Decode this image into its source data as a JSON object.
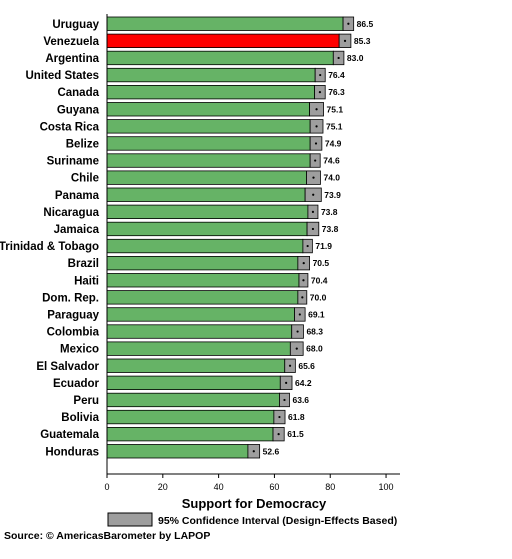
{
  "chart_data": {
    "type": "bar",
    "orientation": "horizontal",
    "categories": [
      "Uruguay",
      "Venezuela",
      "Argentina",
      "United States",
      "Canada",
      "Guyana",
      "Costa Rica",
      "Belize",
      "Suriname",
      "Chile",
      "Panama",
      "Nicaragua",
      "Jamaica",
      "Trinidad & Tobago",
      "Brazil",
      "Haiti",
      "Dom. Rep.",
      "Paraguay",
      "Colombia",
      "Mexico",
      "El Salvador",
      "Ecuador",
      "Peru",
      "Bolivia",
      "Guatemala",
      "Honduras"
    ],
    "values": [
      86.5,
      85.3,
      83.0,
      76.4,
      76.3,
      75.1,
      75.1,
      74.9,
      74.6,
      74.0,
      73.9,
      73.8,
      73.8,
      71.9,
      70.5,
      70.4,
      70.0,
      69.1,
      68.3,
      68.0,
      65.6,
      64.2,
      63.6,
      61.8,
      61.5,
      52.6
    ],
    "value_labels": [
      "86.5",
      "85.3",
      "83.0",
      "76.4",
      "76.3",
      "75.1",
      "75.1",
      "74.9",
      "74.6",
      "74.0",
      "73.9",
      "73.8",
      "73.8",
      "71.9",
      "70.5",
      "70.4",
      "70.0",
      "69.1",
      "68.3",
      "68.0",
      "65.6",
      "64.2",
      "63.6",
      "61.8",
      "61.5",
      "52.6"
    ],
    "ci_half_width": [
      1.9,
      2.1,
      1.9,
      1.8,
      1.9,
      2.5,
      2.3,
      2.1,
      1.8,
      2.5,
      2.9,
      1.8,
      2.1,
      1.7,
      2.1,
      1.6,
      1.6,
      1.9,
      2.1,
      2.3,
      1.9,
      2.1,
      1.8,
      2.0,
      2.0,
      2.1
    ],
    "xlim": [
      0,
      105
    ],
    "xticks": [
      0,
      20,
      40,
      60,
      80,
      100
    ],
    "xlabel": "Support for Democracy",
    "legend": {
      "label": "95% Confidence Interval (Design-Effects Based)",
      "placement": "bottom"
    },
    "source": "Source: © AmericasBarometer by LAPOP",
    "colors": {
      "bar": "#66b366",
      "highlight": "#ff0000",
      "highlight_category": "Venezuela",
      "ci": "#9e9e9e",
      "outline": "#000000"
    },
    "grid": false
  }
}
